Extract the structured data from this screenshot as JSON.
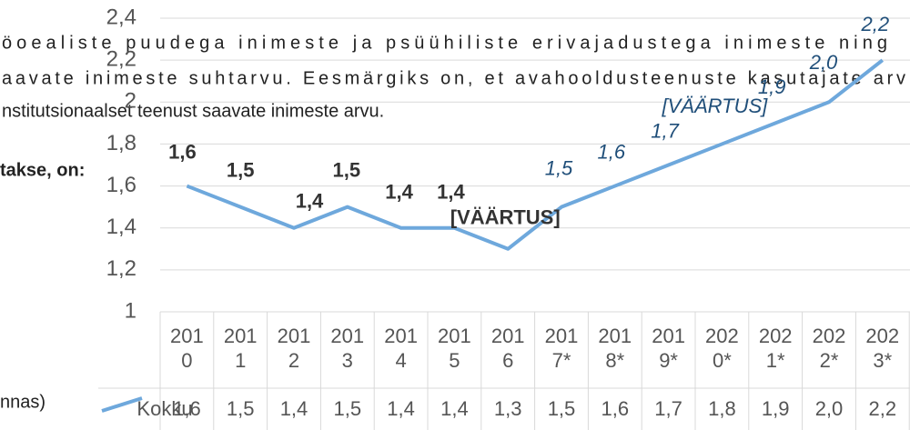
{
  "document": {
    "lines": [
      "öoealiste puudega inimeste ja psüühiliste erivajadustega inimeste ning",
      "aavate inimeste suhtarvu. Eesmärgiks on, et avahooldusteenuste kasutajate arv",
      "nstitutsionaalset teenust saavate inimeste arvu."
    ],
    "bold_line": "takse, on:",
    "caption": "nnas)"
  },
  "chart_data": {
    "type": "line",
    "categories": [
      "2010",
      "2011",
      "2012",
      "2013",
      "2014",
      "2015",
      "2016",
      "2017*",
      "2018*",
      "2019*",
      "2020*",
      "2021*",
      "2022*",
      "2023*"
    ],
    "series": [
      {
        "name": "Kokku",
        "color": "#6ea8dc",
        "values": [
          1.6,
          1.5,
          1.4,
          1.5,
          1.4,
          1.4,
          1.3,
          1.5,
          1.6,
          1.7,
          1.8,
          1.9,
          2.0,
          2.2
        ],
        "value_labels": [
          "1,6",
          "1,5",
          "1,4",
          "1,5",
          "1,4",
          "1,4",
          "[VÄÄRTUS]",
          "1,5",
          "1,6",
          "1,7",
          "[VÄÄRTUS]",
          "1,9",
          "2,0",
          "2,2"
        ],
        "table_labels": [
          "1,6",
          "1,5",
          "1,4",
          "1,5",
          "1,4",
          "1,4",
          "1,3",
          "1,5",
          "1,6",
          "1,7",
          "1,8",
          "1,9",
          "2,0",
          "2,2"
        ]
      }
    ],
    "label_colors": {
      "actual": "#333333",
      "forecast": "#1f4e79"
    },
    "ylim": [
      1,
      2.4
    ],
    "yticks": [
      1,
      {
        "value": 1.2,
        "label": "1,2"
      },
      {
        "value": 1.4,
        "label": "1,4"
      },
      {
        "value": 1.6,
        "label": "1,6"
      },
      {
        "value": 1.8,
        "label": "1,8"
      },
      {
        "value": 2,
        "label": "2"
      },
      {
        "value": 2.2,
        "label": "2,2"
      },
      {
        "value": 2.4,
        "label": "2,4"
      }
    ],
    "grid": true
  }
}
